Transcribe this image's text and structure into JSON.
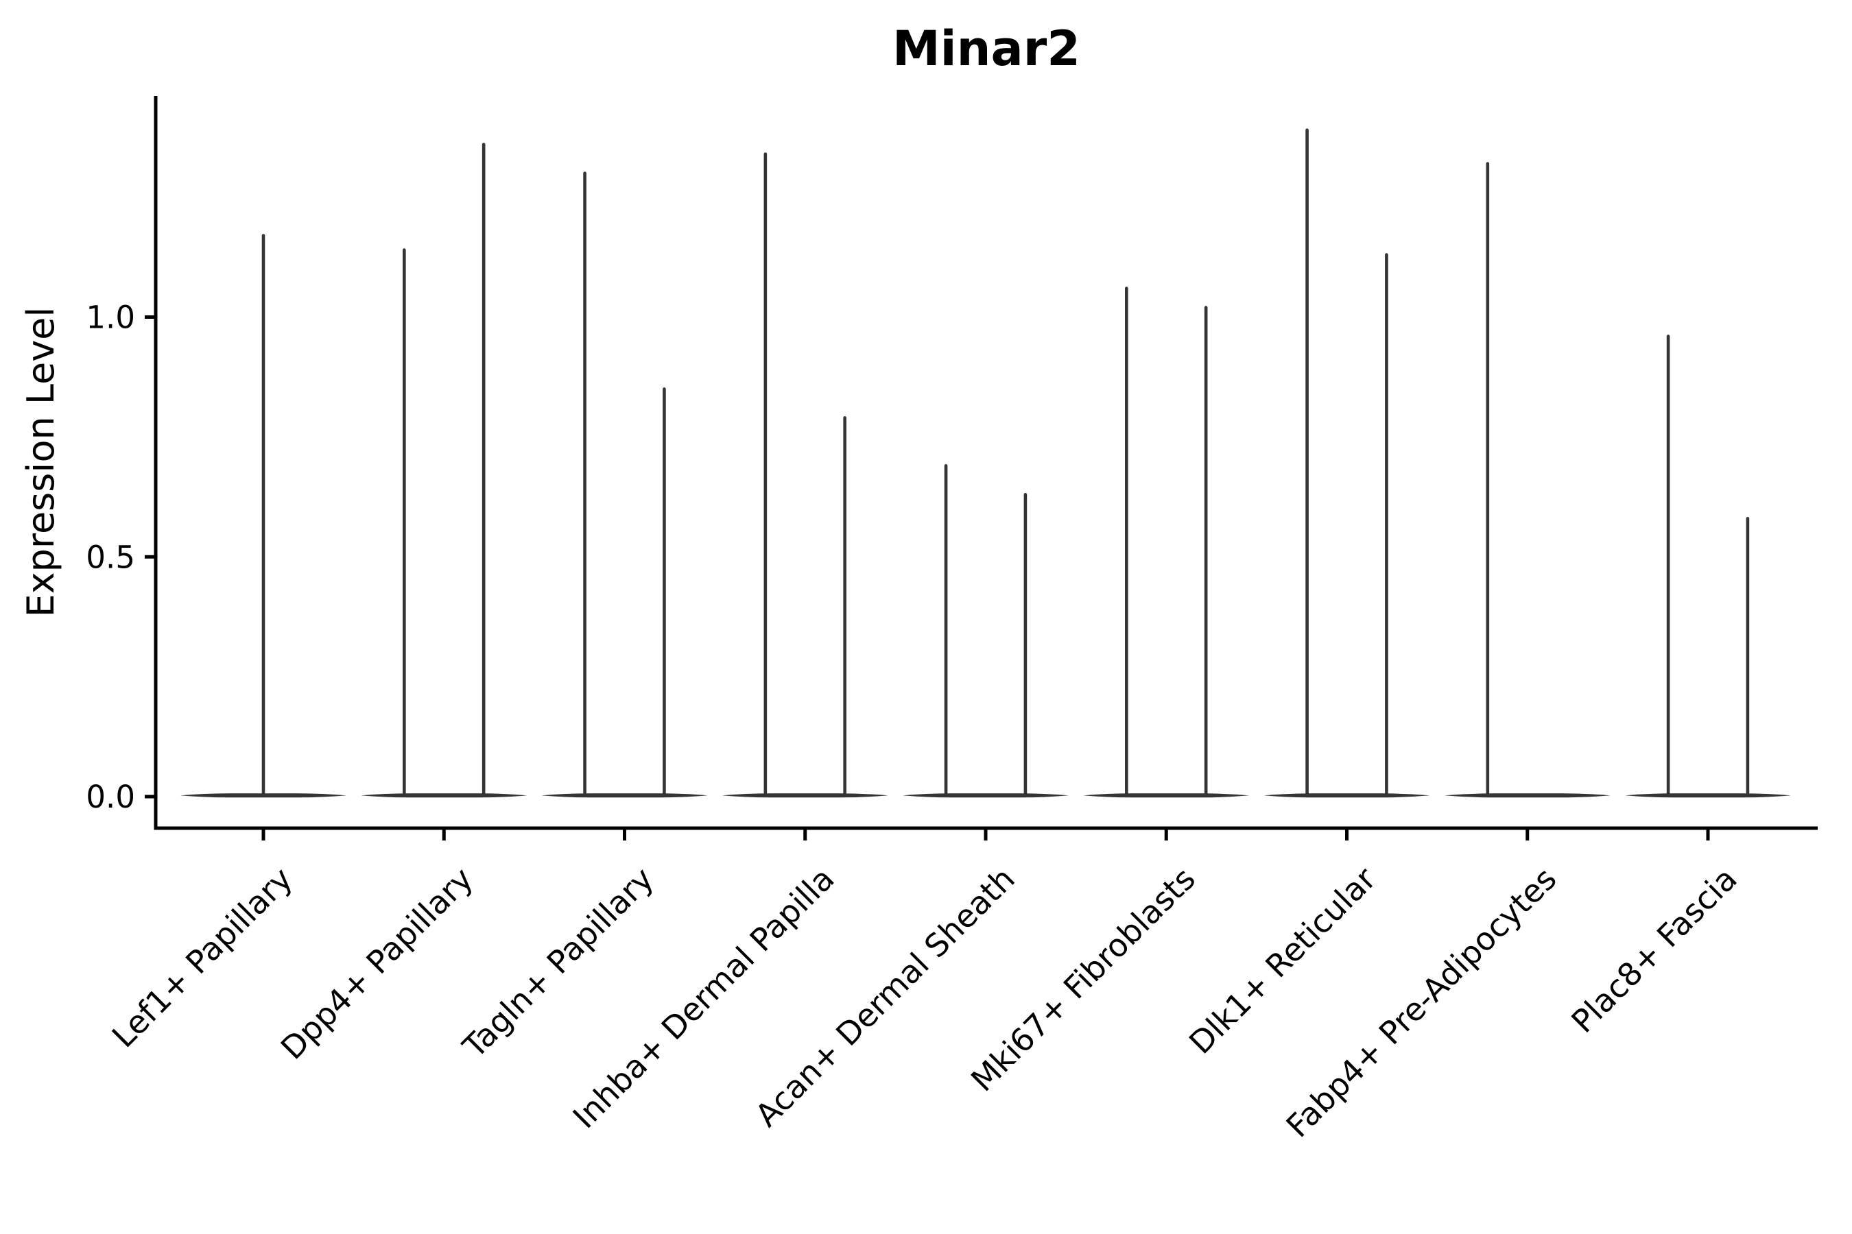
{
  "chart_data": {
    "type": "violin",
    "title": "Minar2",
    "ylabel": "Expression Level",
    "xlabel": "",
    "grid": false,
    "legend": null,
    "ytick_labels": [
      "0.0",
      "0.5",
      "1.0"
    ],
    "ytick_values": [
      0.0,
      0.5,
      1.0
    ],
    "ylim": [
      -0.066,
      1.46
    ],
    "categories": [
      "Lef1+ Papillary",
      "Dpp4+ Papillary",
      "Tagln+ Papillary",
      "Inhba+ Dermal Papilla",
      "Acan+ Dermal Sheath",
      "Mki67+ Fibroblasts",
      "Dlk1+ Reticular",
      "Fabp4+ Pre-Adipocytes",
      "Plac8+ Fascia"
    ],
    "violins": [
      {
        "category": "Lef1+ Papillary",
        "base_at_zero": true,
        "peaks": [
          {
            "offset": 0.0,
            "max": 1.17
          }
        ]
      },
      {
        "category": "Dpp4+ Papillary",
        "base_at_zero": true,
        "peaks": [
          {
            "offset": -0.22,
            "max": 1.14
          },
          {
            "offset": 0.22,
            "max": 1.36
          }
        ]
      },
      {
        "category": "Tagln+ Papillary",
        "base_at_zero": true,
        "peaks": [
          {
            "offset": -0.22,
            "max": 1.3
          },
          {
            "offset": 0.22,
            "max": 0.85
          }
        ]
      },
      {
        "category": "Inhba+ Dermal Papilla",
        "base_at_zero": true,
        "peaks": [
          {
            "offset": -0.22,
            "max": 1.34
          },
          {
            "offset": 0.22,
            "max": 0.79
          }
        ]
      },
      {
        "category": "Acan+ Dermal Sheath",
        "base_at_zero": true,
        "peaks": [
          {
            "offset": -0.22,
            "max": 0.69
          },
          {
            "offset": 0.22,
            "max": 0.63
          }
        ]
      },
      {
        "category": "Mki67+ Fibroblasts",
        "base_at_zero": true,
        "peaks": [
          {
            "offset": -0.22,
            "max": 1.06
          },
          {
            "offset": 0.22,
            "max": 1.02
          }
        ]
      },
      {
        "category": "Dlk1+ Reticular",
        "base_at_zero": true,
        "peaks": [
          {
            "offset": -0.22,
            "max": 1.39
          },
          {
            "offset": 0.22,
            "max": 1.13
          }
        ]
      },
      {
        "category": "Fabp4+ Pre-Adipocytes",
        "base_at_zero": true,
        "peaks": [
          {
            "offset": -0.22,
            "max": 1.32
          }
        ]
      },
      {
        "category": "Plac8+ Fascia",
        "base_at_zero": true,
        "peaks": [
          {
            "offset": -0.22,
            "max": 0.96
          },
          {
            "offset": 0.22,
            "max": 0.58
          }
        ]
      }
    ],
    "base_halfwidth": 0.46,
    "colors": {
      "violin": "#343434",
      "axis": "#000000",
      "text": "#000000",
      "background": "#ffffff"
    }
  }
}
